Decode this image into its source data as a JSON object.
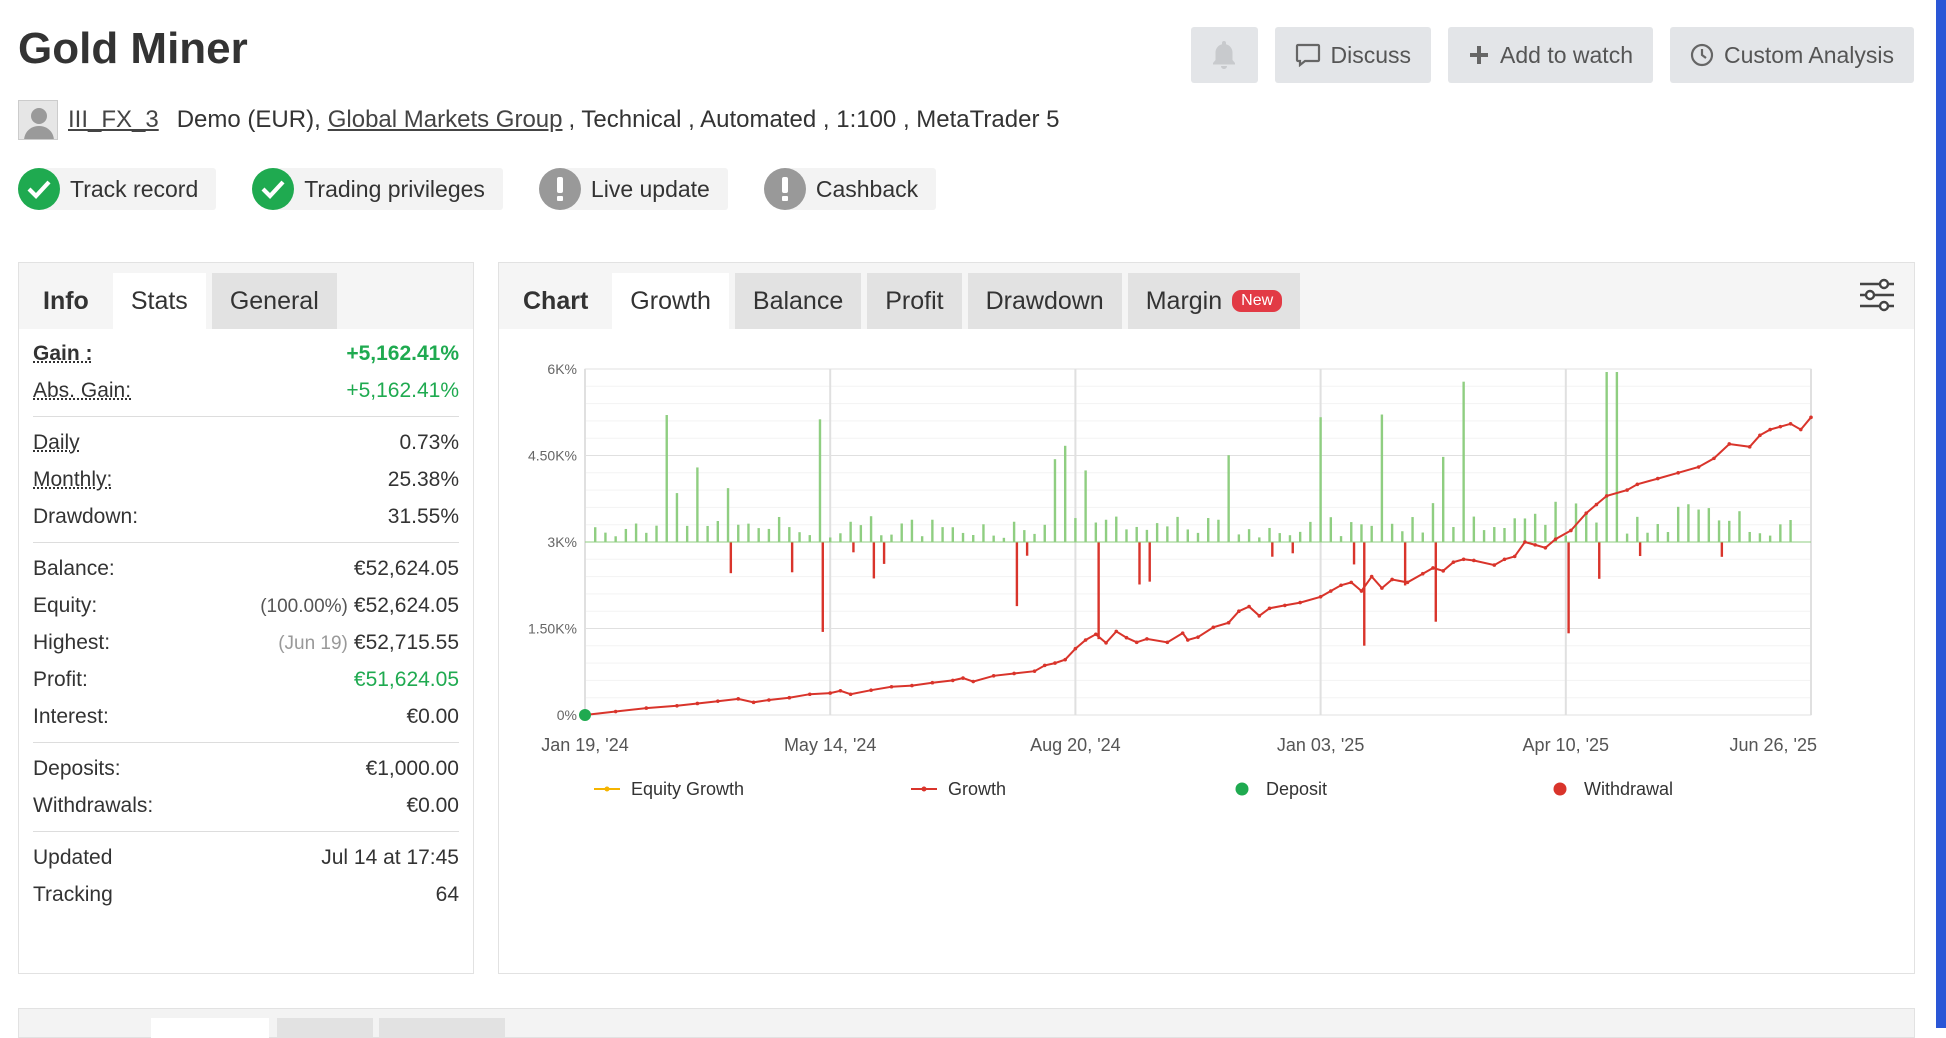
{
  "header": {
    "title": "Gold Miner",
    "discuss_label": "Discuss",
    "add_watch_label": "Add to watch",
    "custom_analysis_label": "Custom Analysis"
  },
  "account": {
    "username": "III_FX_3",
    "type": "Demo (EUR),",
    "broker": "Global Markets Group",
    "details": ", Technical , Automated , 1:100 , MetaTrader 5"
  },
  "badges": [
    {
      "label": "Track record",
      "status": "ok"
    },
    {
      "label": "Trading privileges",
      "status": "ok"
    },
    {
      "label": "Live update",
      "status": "warn"
    },
    {
      "label": "Cashback",
      "status": "warn"
    }
  ],
  "left_tabs": {
    "info": "Info",
    "stats": "Stats",
    "general": "General"
  },
  "stats": {
    "gain_label": "Gain :",
    "gain_value": "+5,162.41%",
    "abs_gain_label": "Abs. Gain:",
    "abs_gain_value": "+5,162.41%",
    "daily_label": "Daily",
    "daily_value": "0.73%",
    "monthly_label": "Monthly:",
    "monthly_value": "25.38%",
    "drawdown_label": "Drawdown:",
    "drawdown_value": "31.55%",
    "balance_label": "Balance:",
    "balance_value": "€52,624.05",
    "equity_label": "Equity:",
    "equity_pct": "(100.00%)",
    "equity_value": "€52,624.05",
    "highest_label": "Highest:",
    "highest_date": "(Jun 19)",
    "highest_value": "€52,715.55",
    "profit_label": "Profit:",
    "profit_value": "€51,624.05",
    "interest_label": "Interest:",
    "interest_value": "€0.00",
    "deposits_label": "Deposits:",
    "deposits_value": "€1,000.00",
    "withdrawals_label": "Withdrawals:",
    "withdrawals_value": "€0.00",
    "updated_label": "Updated",
    "updated_value": "Jul 14 at 17:45",
    "tracking_label": "Tracking",
    "tracking_value": "64"
  },
  "chart_tabs": {
    "chart": "Chart",
    "growth": "Growth",
    "balance": "Balance",
    "profit": "Profit",
    "drawdown": "Drawdown",
    "margin": "Margin",
    "new_badge": "New"
  },
  "icons": [
    "bell-icon",
    "comment-icon",
    "plus-icon",
    "clock-icon",
    "user-avatar-icon",
    "check-icon",
    "exclamation-icon",
    "sliders-icon"
  ],
  "colors": {
    "green": "#1faa50",
    "red": "#d9342b",
    "bar_green": "#8fce81",
    "bar_red": "#d9342b",
    "equity": "#f5b400"
  },
  "chart_data": {
    "type": "line",
    "y_ticks": [
      "0%",
      "1.50K%",
      "3K%",
      "4.50K%",
      "6K%"
    ],
    "ylim": [
      0,
      6000
    ],
    "x_ticks": [
      "Jan 19, '24",
      "May 14, '24",
      "Aug 20, '24",
      "Jan 03, '25",
      "Apr 10, '25",
      "Jun 26, '25"
    ],
    "legend": [
      "Equity Growth",
      "Growth",
      "Deposit",
      "Withdrawal"
    ],
    "series": [
      {
        "name": "Growth",
        "points": [
          [
            0,
            0
          ],
          [
            6,
            60
          ],
          [
            12,
            120
          ],
          [
            18,
            160
          ],
          [
            22,
            200
          ],
          [
            26,
            240
          ],
          [
            30,
            280
          ],
          [
            33,
            220
          ],
          [
            36,
            260
          ],
          [
            40,
            300
          ],
          [
            44,
            360
          ],
          [
            48,
            380
          ],
          [
            50,
            420
          ],
          [
            52,
            360
          ],
          [
            56,
            430
          ],
          [
            60,
            490
          ],
          [
            64,
            510
          ],
          [
            68,
            560
          ],
          [
            72,
            600
          ],
          [
            74,
            640
          ],
          [
            76,
            580
          ],
          [
            80,
            680
          ],
          [
            84,
            720
          ],
          [
            88,
            760
          ],
          [
            90,
            860
          ],
          [
            92,
            900
          ],
          [
            94,
            960
          ],
          [
            96,
            1150
          ],
          [
            98,
            1300
          ],
          [
            100,
            1400
          ],
          [
            102,
            1250
          ],
          [
            104,
            1450
          ],
          [
            106,
            1340
          ],
          [
            108,
            1260
          ],
          [
            110,
            1320
          ],
          [
            114,
            1260
          ],
          [
            117,
            1420
          ],
          [
            118,
            1300
          ],
          [
            120,
            1350
          ],
          [
            123,
            1520
          ],
          [
            126,
            1600
          ],
          [
            128,
            1800
          ],
          [
            130,
            1880
          ],
          [
            132,
            1720
          ],
          [
            134,
            1850
          ],
          [
            137,
            1900
          ],
          [
            140,
            1950
          ],
          [
            144,
            2050
          ],
          [
            146,
            2150
          ],
          [
            148,
            2250
          ],
          [
            150,
            2300
          ],
          [
            152,
            2150
          ],
          [
            154,
            2400
          ],
          [
            156,
            2200
          ],
          [
            158,
            2350
          ],
          [
            161,
            2300
          ],
          [
            164,
            2450
          ],
          [
            166,
            2550
          ],
          [
            168,
            2500
          ],
          [
            170,
            2650
          ],
          [
            172,
            2700
          ],
          [
            174,
            2680
          ],
          [
            178,
            2600
          ],
          [
            180,
            2700
          ],
          [
            182,
            2750
          ],
          [
            184,
            3000
          ],
          [
            186,
            2950
          ],
          [
            188,
            2900
          ],
          [
            190,
            3050
          ],
          [
            193,
            3200
          ],
          [
            196,
            3500
          ],
          [
            198,
            3650
          ],
          [
            200,
            3800
          ],
          [
            204,
            3900
          ],
          [
            206,
            4000
          ],
          [
            210,
            4100
          ],
          [
            214,
            4200
          ],
          [
            218,
            4300
          ],
          [
            221,
            4450
          ],
          [
            224,
            4700
          ],
          [
            228,
            4650
          ],
          [
            230,
            4850
          ],
          [
            232,
            4950
          ],
          [
            234,
            5000
          ],
          [
            236,
            5050
          ],
          [
            238,
            4950
          ],
          [
            240,
            5162
          ]
        ]
      },
      {
        "name": "Deposit",
        "points": [
          [
            0,
            0
          ]
        ]
      }
    ]
  }
}
